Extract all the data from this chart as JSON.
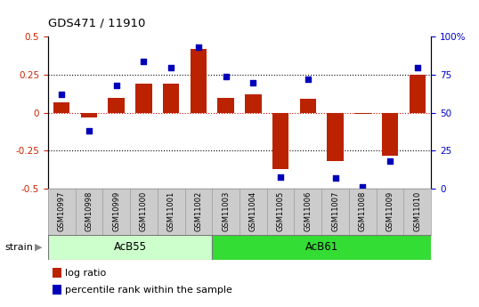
{
  "title": "GDS471 / 11910",
  "samples": [
    "GSM10997",
    "GSM10998",
    "GSM10999",
    "GSM11000",
    "GSM11001",
    "GSM11002",
    "GSM11003",
    "GSM11004",
    "GSM11005",
    "GSM11006",
    "GSM11007",
    "GSM11008",
    "GSM11009",
    "GSM11010"
  ],
  "log_ratio": [
    0.07,
    -0.03,
    0.1,
    0.19,
    0.19,
    0.42,
    0.1,
    0.12,
    -0.37,
    0.09,
    -0.32,
    -0.01,
    -0.28,
    0.25
  ],
  "percentile_rank": [
    62,
    38,
    68,
    84,
    80,
    93,
    74,
    70,
    8,
    72,
    7,
    1,
    18,
    80
  ],
  "groups": [
    {
      "name": "AcB55",
      "start": 0,
      "end": 6,
      "color": "#c8f0c8"
    },
    {
      "name": "AcB61",
      "start": 6,
      "end": 14,
      "color": "#44dd44"
    }
  ],
  "ylim_left": [
    -0.5,
    0.5
  ],
  "ylim_right": [
    0,
    100
  ],
  "bar_color": "#bb2200",
  "dot_color": "#0000bb",
  "hline_color": "#dd0000",
  "bg_color": "#ffffff"
}
